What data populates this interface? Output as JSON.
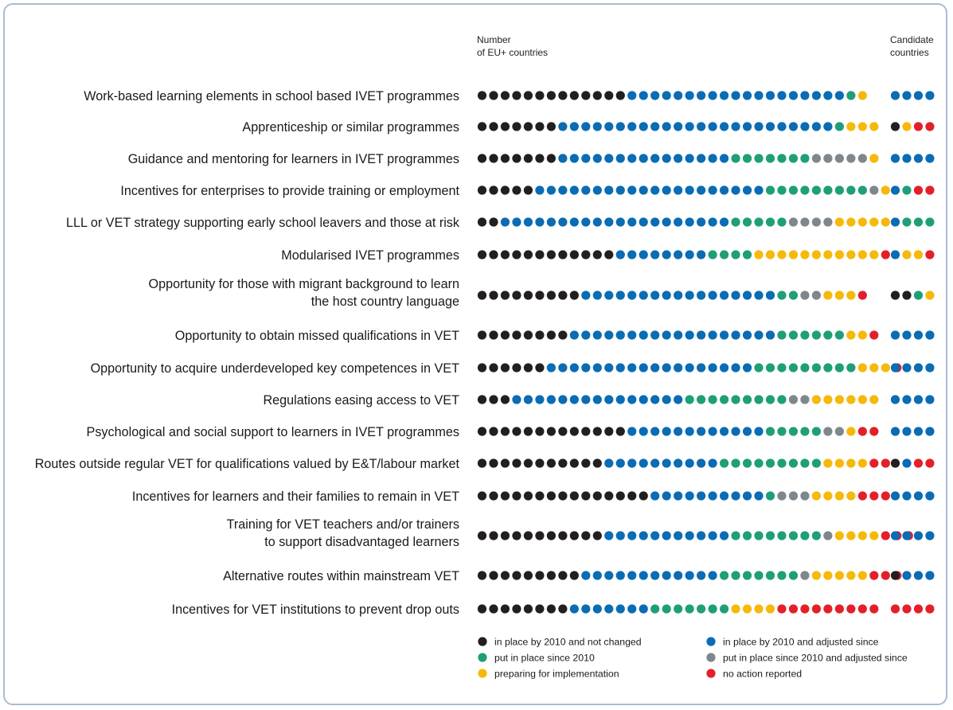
{
  "chart_data": {
    "type": "dot-matrix",
    "headers": {
      "eu_line1": "Number",
      "eu_line2": "of EU+ countries",
      "cand_line1": "Candidate",
      "cand_line2": "countries"
    },
    "categories": [
      {
        "label": [
          "Work-based learning elements in school based IVET programmes"
        ],
        "eu": [
          13,
          19,
          1,
          0,
          1,
          0
        ],
        "candidate": [
          0,
          4,
          0,
          0,
          0,
          0
        ]
      },
      {
        "label": [
          "Apprenticeship or similar programmes"
        ],
        "eu": [
          7,
          24,
          1,
          0,
          3,
          0
        ],
        "candidate": [
          1,
          0,
          0,
          0,
          1,
          2
        ]
      },
      {
        "label": [
          "Guidance and mentoring for learners in IVET programmes"
        ],
        "eu": [
          7,
          15,
          7,
          5,
          1,
          0
        ],
        "candidate": [
          0,
          4,
          0,
          0,
          0,
          0
        ]
      },
      {
        "label": [
          "Incentives for enterprises to provide training or employment"
        ],
        "eu": [
          5,
          20,
          9,
          1,
          1,
          0
        ],
        "candidate": [
          0,
          1,
          1,
          0,
          0,
          2
        ]
      },
      {
        "label": [
          "LLL or VET strategy supporting early school leavers and those at risk"
        ],
        "eu": [
          2,
          20,
          5,
          4,
          5,
          0
        ],
        "candidate": [
          0,
          1,
          3,
          0,
          0,
          0
        ]
      },
      {
        "label": [
          "Modularised IVET programmes"
        ],
        "eu": [
          12,
          8,
          4,
          0,
          11,
          1
        ],
        "candidate": [
          0,
          1,
          0,
          0,
          2,
          1
        ]
      },
      {
        "label": [
          "Opportunity for those with migrant background to learn",
          "the host country language"
        ],
        "eu": [
          9,
          17,
          2,
          2,
          3,
          1
        ],
        "candidate": [
          2,
          0,
          1,
          0,
          1,
          0
        ]
      },
      {
        "label": [
          "Opportunity to obtain missed qualifications in VET"
        ],
        "eu": [
          8,
          18,
          6,
          0,
          2,
          1
        ],
        "candidate": [
          0,
          4,
          0,
          0,
          0,
          0
        ]
      },
      {
        "label": [
          "Opportunity to acquire underdeveloped key competences in VET"
        ],
        "eu": [
          6,
          18,
          9,
          0,
          3,
          1
        ],
        "candidate": [
          0,
          4,
          0,
          0,
          0,
          0
        ]
      },
      {
        "label": [
          "Regulations easing access to VET"
        ],
        "eu": [
          3,
          15,
          9,
          2,
          6,
          0
        ],
        "candidate": [
          0,
          4,
          0,
          0,
          0,
          0
        ]
      },
      {
        "label": [
          "Psychological and social support to learners in IVET programmes"
        ],
        "eu": [
          13,
          12,
          5,
          2,
          1,
          2
        ],
        "candidate": [
          0,
          4,
          0,
          0,
          0,
          0
        ]
      },
      {
        "label": [
          "Routes outside regular VET for qualifications valued by E&T/labour market"
        ],
        "eu": [
          11,
          10,
          9,
          0,
          4,
          2
        ],
        "candidate": [
          1,
          1,
          0,
          0,
          0,
          2
        ]
      },
      {
        "label": [
          "Incentives for learners and their families to remain in VET"
        ],
        "eu": [
          15,
          10,
          1,
          3,
          4,
          3
        ],
        "candidate": [
          0,
          4,
          0,
          0,
          0,
          0
        ]
      },
      {
        "label": [
          "Training for VET teachers and/or trainers",
          "to support disadvantaged learners"
        ],
        "eu": [
          11,
          11,
          8,
          1,
          4,
          3
        ],
        "candidate": [
          0,
          4,
          0,
          0,
          0,
          0
        ]
      },
      {
        "label": [
          "Alternative routes within mainstream VET"
        ],
        "eu": [
          9,
          12,
          7,
          1,
          5,
          3
        ],
        "candidate": [
          1,
          3,
          0,
          0,
          0,
          0
        ]
      },
      {
        "label": [
          "Incentives for VET institutions to prevent drop outs"
        ],
        "eu": [
          8,
          7,
          7,
          0,
          4,
          9
        ],
        "candidate": [
          0,
          0,
          0,
          0,
          0,
          4
        ]
      }
    ],
    "legend": [
      {
        "label": "in place by 2010 and not changed",
        "color": "#231f20"
      },
      {
        "label": "in place by 2010 and adjusted since",
        "color": "#0a6cb4"
      },
      {
        "label": "put in place since 2010",
        "color": "#1e9f78"
      },
      {
        "label": "put in place since 2010 and adjusted since",
        "color": "#7f868c"
      },
      {
        "label": "preparing for implementation",
        "color": "#f6b90a"
      },
      {
        "label": "no action reported",
        "color": "#e3202a"
      }
    ]
  }
}
